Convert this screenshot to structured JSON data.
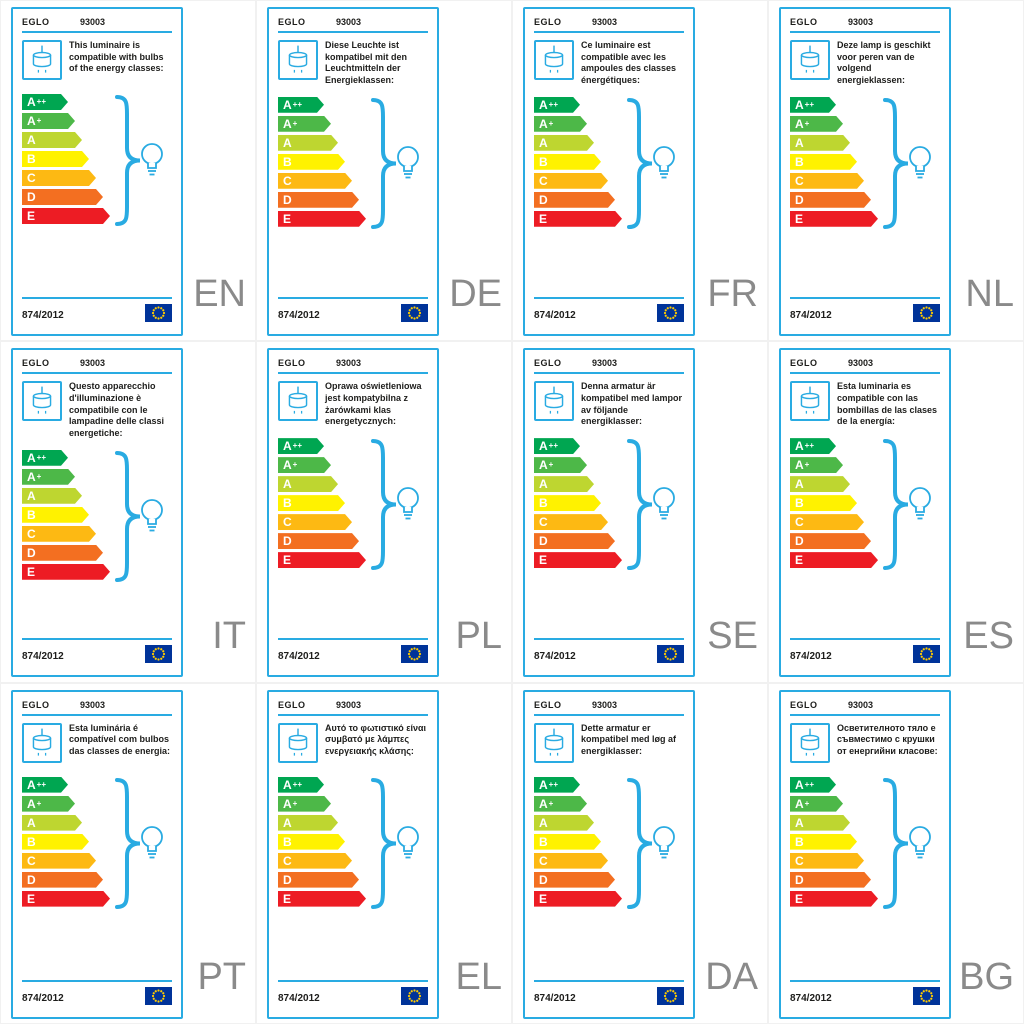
{
  "common": {
    "brand": "EGLO",
    "model": "93003",
    "regulation": "874/2012",
    "accent_color": "#29abe2",
    "language_code_color": "#8a8a8a",
    "eu_flag_blue": "#003399",
    "eu_flag_star_yellow": "#ffcc00"
  },
  "energy_classes": [
    {
      "label": "A",
      "sup": "++",
      "color": "#00a651"
    },
    {
      "label": "A",
      "sup": "+",
      "color": "#4db848"
    },
    {
      "label": "A",
      "sup": "",
      "color": "#bed630"
    },
    {
      "label": "B",
      "sup": "",
      "color": "#fff200"
    },
    {
      "label": "C",
      "sup": "",
      "color": "#fdb913"
    },
    {
      "label": "D",
      "sup": "",
      "color": "#f36f21"
    },
    {
      "label": "E",
      "sup": "",
      "color": "#ed1c24"
    }
  ],
  "cards": [
    {
      "code": "EN",
      "description": "This luminaire is compatible with bulbs of the energy classes:"
    },
    {
      "code": "DE",
      "description": "Diese Leuchte ist kompatibel mit den Leuchtmitteln der Energieklassen:"
    },
    {
      "code": "FR",
      "description": "Ce luminaire est compatible avec les ampoules des classes énergétiques:"
    },
    {
      "code": "NL",
      "description": "Deze lamp is geschikt voor peren van de volgend energieklassen:"
    },
    {
      "code": "IT",
      "description": "Questo apparecchio d'illuminazione è compatibile con le lampadine delle classi energetiche:"
    },
    {
      "code": "PL",
      "description": "Oprawa oświetleniowa jest kompatybilna z żarówkami klas energetycznych:"
    },
    {
      "code": "SE",
      "description": "Denna armatur är kompatibel med lampor av följande energiklasser:"
    },
    {
      "code": "ES",
      "description": "Esta luminaria es compatible con las bombillas de las clases de la energía:"
    },
    {
      "code": "PT",
      "description": "Esta luminária é compatível com bulbos das classes de energia:"
    },
    {
      "code": "EL",
      "description": "Αυτό το φωτιστικό είναι συμβατό με λάμπες ενεργειακής κλάσης:"
    },
    {
      "code": "DA",
      "description": "Dette armatur er kompatibel med løg af energiklasser:"
    },
    {
      "code": "BG",
      "description": "Осветителното тяло е съвместимо с крушки от енергийни класове:"
    }
  ]
}
